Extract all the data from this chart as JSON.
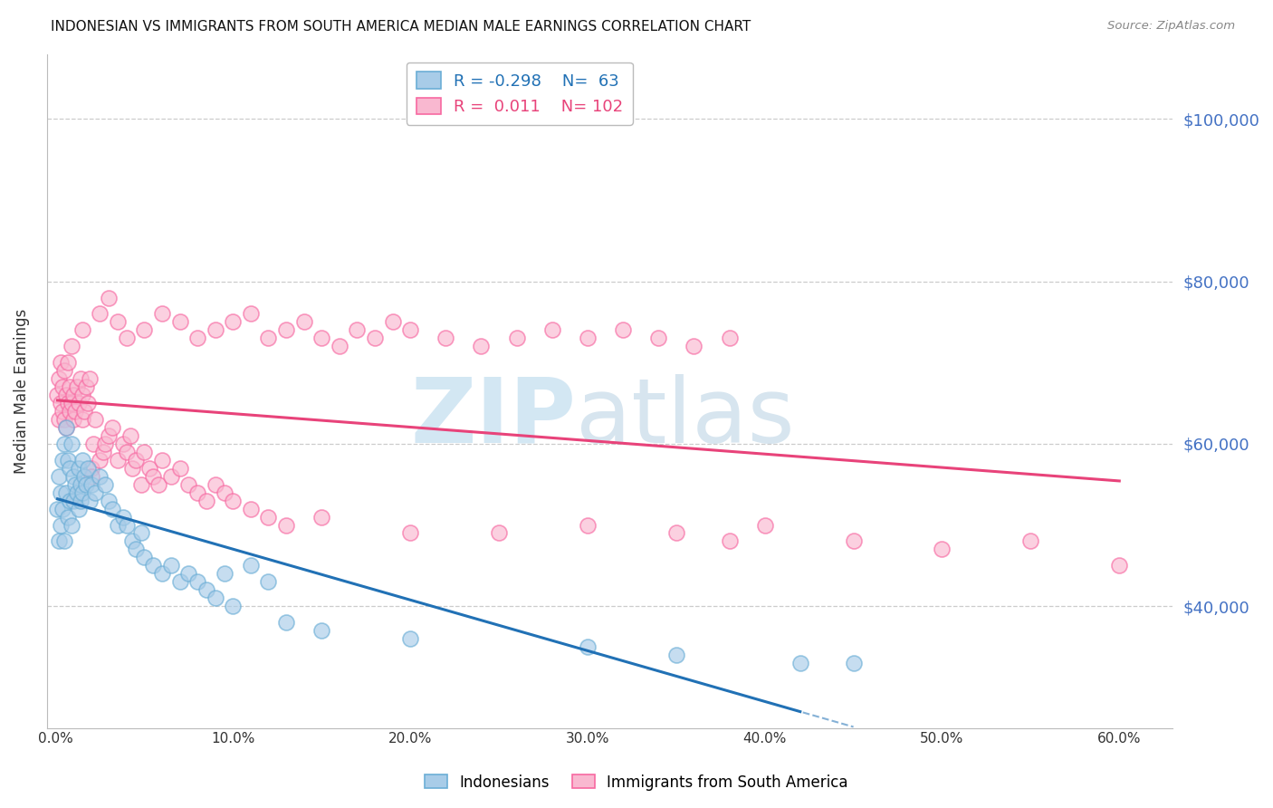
{
  "title": "INDONESIAN VS IMMIGRANTS FROM SOUTH AMERICA MEDIAN MALE EARNINGS CORRELATION CHART",
  "source": "Source: ZipAtlas.com",
  "ylabel": "Median Male Earnings",
  "ytick_labels": [
    "$100,000",
    "$80,000",
    "$60,000",
    "$40,000"
  ],
  "ytick_vals": [
    100000,
    80000,
    60000,
    40000
  ],
  "ylim": [
    25000,
    108000
  ],
  "xlim": [
    -0.005,
    0.63
  ],
  "xtick_vals": [
    0.0,
    0.1,
    0.2,
    0.3,
    0.4,
    0.5,
    0.6
  ],
  "xtick_labels": [
    "0.0%",
    "10.0%",
    "20.0%",
    "30.0%",
    "40.0%",
    "50.0%",
    "60.0%"
  ],
  "indonesian_color_edge": "#6baed6",
  "indonesian_color_face": "#a8cce8",
  "sa_color_edge": "#f768a1",
  "sa_color_face": "#f9b8d0",
  "indonesian_trend_color": "#2171b5",
  "sa_trend_color": "#e8437a",
  "legend_label1": "Indonesians",
  "legend_label2": "Immigrants from South America",
  "indonesian_x": [
    0.001,
    0.002,
    0.002,
    0.003,
    0.003,
    0.004,
    0.004,
    0.005,
    0.005,
    0.006,
    0.006,
    0.007,
    0.007,
    0.008,
    0.008,
    0.009,
    0.009,
    0.01,
    0.01,
    0.011,
    0.012,
    0.013,
    0.013,
    0.014,
    0.014,
    0.015,
    0.015,
    0.016,
    0.017,
    0.018,
    0.019,
    0.02,
    0.022,
    0.025,
    0.028,
    0.03,
    0.032,
    0.035,
    0.038,
    0.04,
    0.043,
    0.045,
    0.048,
    0.05,
    0.055,
    0.06,
    0.065,
    0.07,
    0.075,
    0.08,
    0.085,
    0.09,
    0.095,
    0.1,
    0.11,
    0.12,
    0.13,
    0.15,
    0.2,
    0.3,
    0.35,
    0.42,
    0.45
  ],
  "indonesian_y": [
    52000,
    48000,
    56000,
    54000,
    50000,
    58000,
    52000,
    60000,
    48000,
    62000,
    54000,
    58000,
    51000,
    57000,
    53000,
    60000,
    50000,
    56000,
    53000,
    55000,
    54000,
    57000,
    52000,
    55000,
    53000,
    58000,
    54000,
    56000,
    55000,
    57000,
    53000,
    55000,
    54000,
    56000,
    55000,
    53000,
    52000,
    50000,
    51000,
    50000,
    48000,
    47000,
    49000,
    46000,
    45000,
    44000,
    45000,
    43000,
    44000,
    43000,
    42000,
    41000,
    44000,
    40000,
    45000,
    43000,
    38000,
    37000,
    36000,
    35000,
    34000,
    33000,
    33000
  ],
  "sa_x": [
    0.001,
    0.002,
    0.002,
    0.003,
    0.003,
    0.004,
    0.004,
    0.005,
    0.005,
    0.006,
    0.006,
    0.007,
    0.007,
    0.008,
    0.008,
    0.009,
    0.009,
    0.01,
    0.01,
    0.011,
    0.012,
    0.013,
    0.014,
    0.015,
    0.015,
    0.016,
    0.017,
    0.018,
    0.019,
    0.02,
    0.021,
    0.022,
    0.025,
    0.027,
    0.028,
    0.03,
    0.032,
    0.035,
    0.038,
    0.04,
    0.042,
    0.043,
    0.045,
    0.048,
    0.05,
    0.053,
    0.055,
    0.058,
    0.06,
    0.065,
    0.07,
    0.075,
    0.08,
    0.085,
    0.09,
    0.095,
    0.1,
    0.11,
    0.12,
    0.13,
    0.15,
    0.2,
    0.25,
    0.3,
    0.35,
    0.38,
    0.4,
    0.45,
    0.5,
    0.55,
    0.6,
    0.015,
    0.02,
    0.025,
    0.03,
    0.035,
    0.04,
    0.05,
    0.06,
    0.07,
    0.08,
    0.09,
    0.1,
    0.11,
    0.12,
    0.13,
    0.14,
    0.15,
    0.16,
    0.17,
    0.18,
    0.19,
    0.2,
    0.22,
    0.24,
    0.26,
    0.28,
    0.3,
    0.32,
    0.34,
    0.36,
    0.38
  ],
  "sa_y": [
    66000,
    63000,
    68000,
    65000,
    70000,
    67000,
    64000,
    63000,
    69000,
    62000,
    66000,
    65000,
    70000,
    64000,
    67000,
    72000,
    65000,
    63000,
    66000,
    64000,
    67000,
    65000,
    68000,
    63000,
    66000,
    64000,
    67000,
    65000,
    68000,
    57000,
    60000,
    63000,
    58000,
    59000,
    60000,
    61000,
    62000,
    58000,
    60000,
    59000,
    61000,
    57000,
    58000,
    55000,
    59000,
    57000,
    56000,
    55000,
    58000,
    56000,
    57000,
    55000,
    54000,
    53000,
    55000,
    54000,
    53000,
    52000,
    51000,
    50000,
    51000,
    49000,
    49000,
    50000,
    49000,
    48000,
    50000,
    48000,
    47000,
    48000,
    45000,
    74000,
    56000,
    76000,
    78000,
    75000,
    73000,
    74000,
    76000,
    75000,
    73000,
    74000,
    75000,
    76000,
    73000,
    74000,
    75000,
    73000,
    72000,
    74000,
    73000,
    75000,
    74000,
    73000,
    72000,
    73000,
    74000,
    73000,
    74000,
    73000,
    72000,
    73000
  ]
}
